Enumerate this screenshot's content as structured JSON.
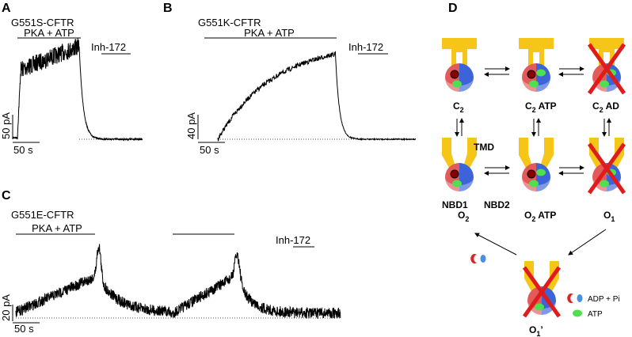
{
  "panels": [
    {
      "label": "A",
      "title": "G551S-CFTR",
      "treatment": "PKA + ATP",
      "inhibitor": "Inh-172",
      "scale_current": "50 pA",
      "scale_time": "50 s"
    },
    {
      "label": "B",
      "title": "G551K-CFTR",
      "treatment": "PKA + ATP",
      "inhibitor": "Inh-172",
      "scale_current": "40 pA",
      "scale_time": "50 s"
    },
    {
      "label": "C",
      "title": "G551E-CFTR",
      "treatment": "PKA + ATP",
      "inhibitor": "Inh-172",
      "scale_current": "20 pA",
      "scale_time": "50 s"
    }
  ],
  "diagram": {
    "label": "D",
    "states": [
      {
        "name": "C",
        "sub": "2",
        "suffix": ""
      },
      {
        "name": "C",
        "sub": "2",
        "suffix": " ATP"
      },
      {
        "name": "C",
        "sub": "2",
        "suffix": " AD"
      },
      {
        "name": "O",
        "sub": "2",
        "suffix": ""
      },
      {
        "name": "O",
        "sub": "2",
        "suffix": " ATP"
      },
      {
        "name": "O",
        "sub": "1",
        "suffix": ""
      },
      {
        "name": "O",
        "sub": "1",
        "suffix": "’"
      }
    ],
    "domains": [
      "TMD",
      "NBD1",
      "NBD2"
    ],
    "legend": [
      "ADP + Pi",
      "ATP"
    ]
  }
}
